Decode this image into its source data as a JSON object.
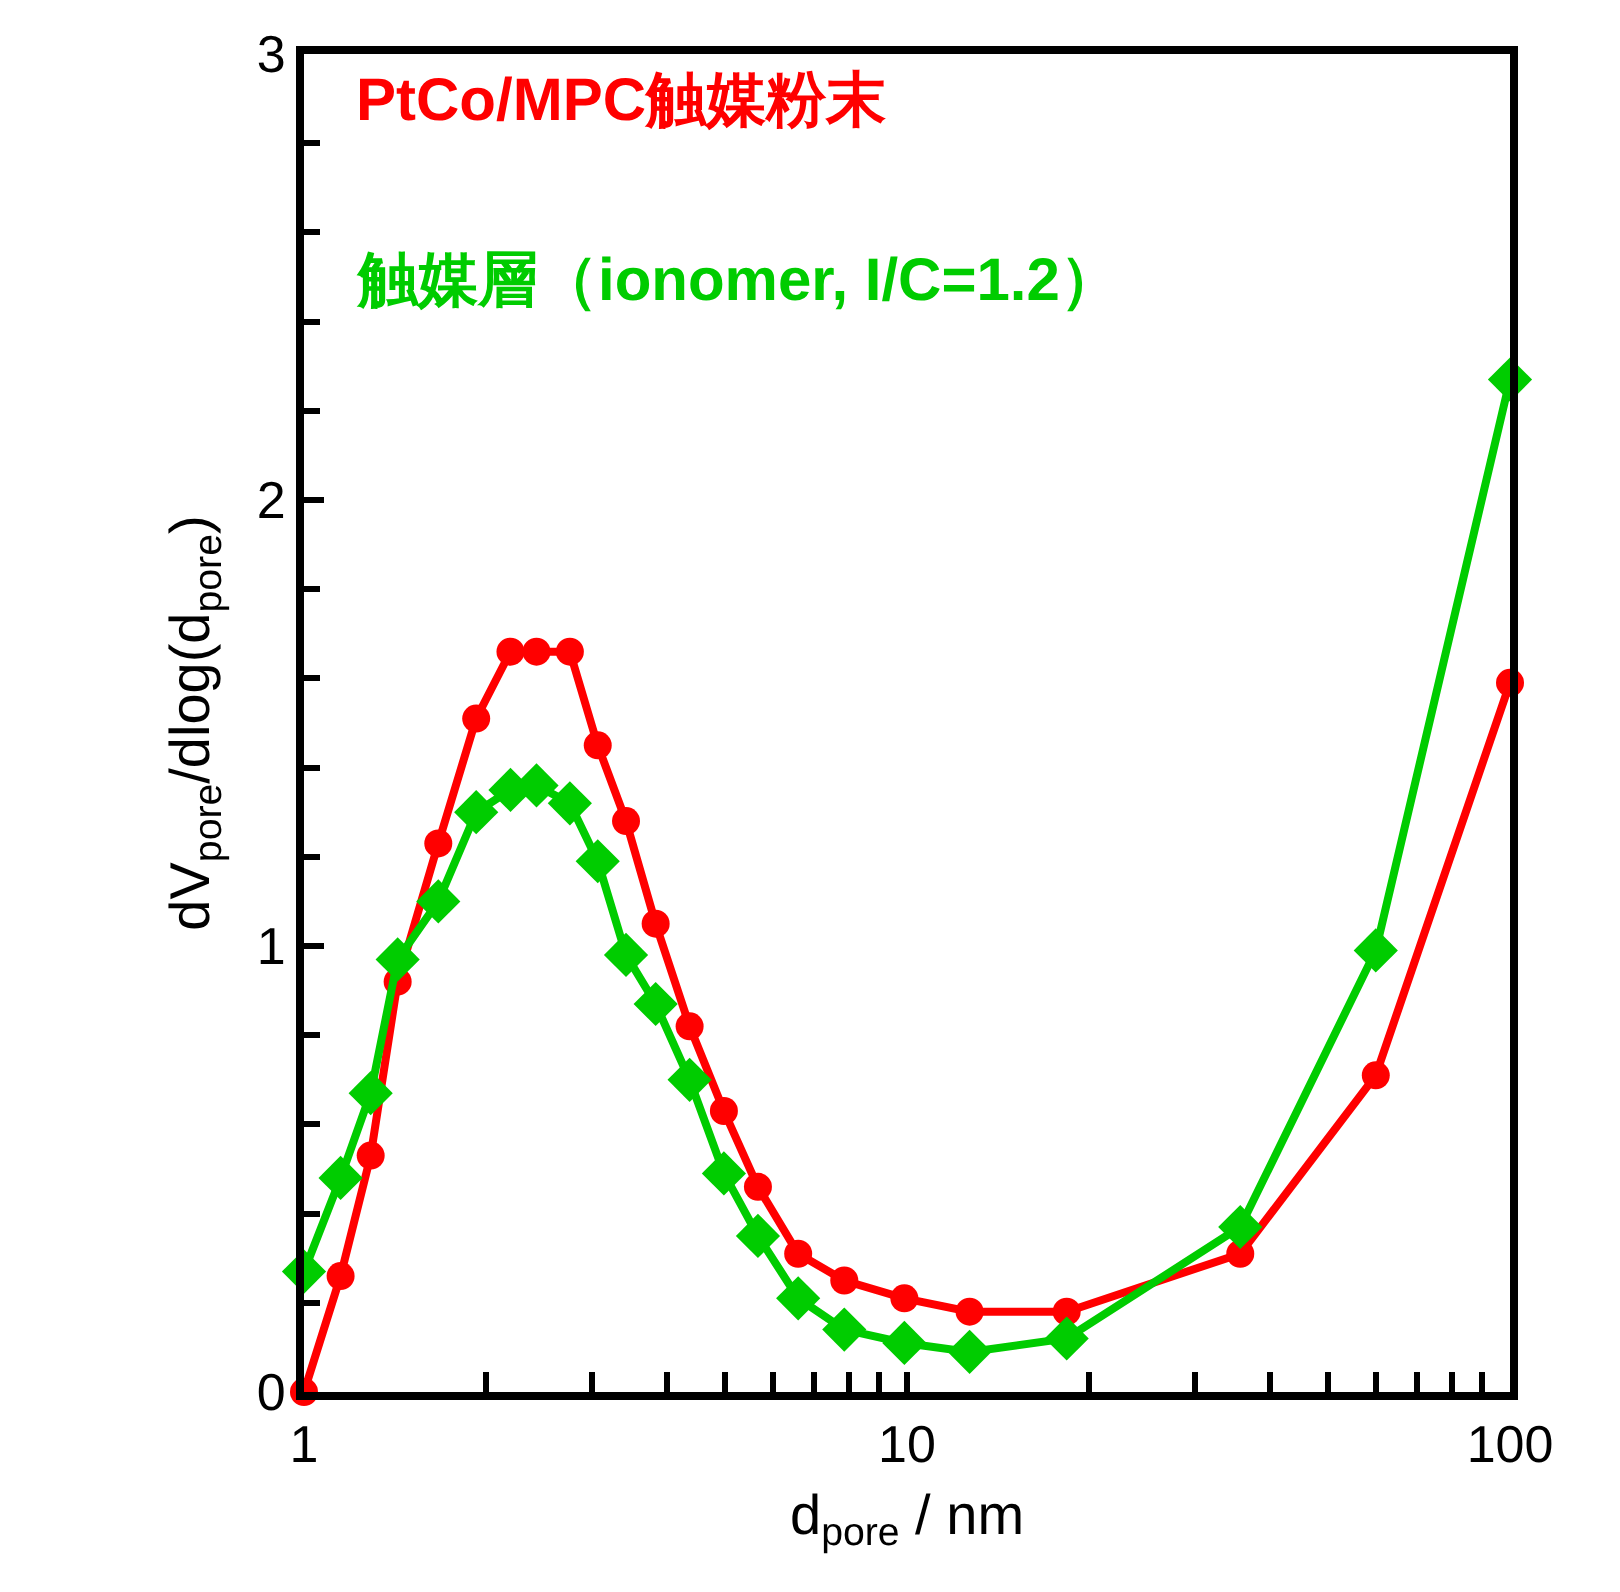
{
  "chart_data": {
    "type": "line",
    "xlabel": "d$_{pore}$ / nm",
    "ylabel": "dV$_{pore}$/dlog(d$_{pore}$)",
    "x": [
      1.0,
      1.15,
      1.29,
      1.43,
      1.67,
      1.93,
      2.2,
      2.43,
      2.76,
      3.07,
      3.42,
      3.83,
      4.36,
      4.97,
      5.66,
      6.6,
      7.87,
      9.9,
      12.7,
      18.4,
      35.7,
      59.9,
      100
    ],
    "series": [
      {
        "name": "PtCo/MPC触媒粉末",
        "color": "#ff0000",
        "marker": "circle",
        "values": [
          0.0,
          0.26,
          0.53,
          0.92,
          1.23,
          1.51,
          1.66,
          1.66,
          1.66,
          1.45,
          1.28,
          1.05,
          0.82,
          0.63,
          0.46,
          0.31,
          0.25,
          0.21,
          0.18,
          0.18,
          0.31,
          0.71,
          1.59
        ]
      },
      {
        "name": "触媒層（ionomer, I/C=1.2）",
        "color": "#00cc00",
        "marker": "diamond",
        "values": [
          0.27,
          0.48,
          0.67,
          0.97,
          1.1,
          1.3,
          1.35,
          1.36,
          1.32,
          1.19,
          0.98,
          0.87,
          0.7,
          0.49,
          0.35,
          0.21,
          0.14,
          0.11,
          0.09,
          0.12,
          0.37,
          0.99,
          2.27
        ]
      }
    ],
    "xlim": [
      1,
      100
    ],
    "xticks": [
      1,
      10,
      100
    ],
    "ylim": [
      0,
      3
    ],
    "yticks": [
      0,
      1,
      2,
      3
    ],
    "log": "x",
    "legend": false,
    "line_style": "solid"
  }
}
